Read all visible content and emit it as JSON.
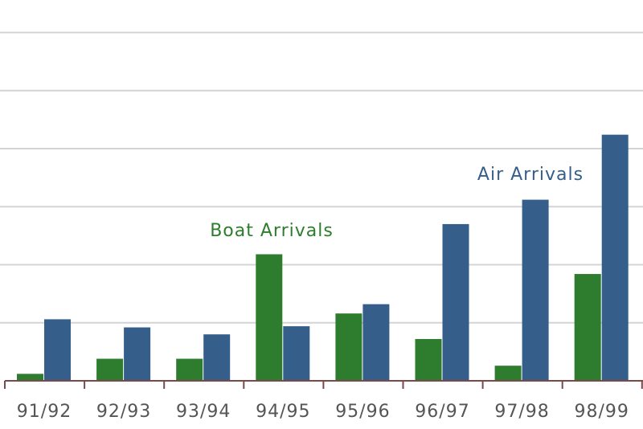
{
  "chart_data": {
    "type": "bar",
    "categories": [
      "91/92",
      "92/93",
      "93/94",
      "94/95",
      "95/96",
      "96/97",
      "97/98",
      "98/99"
    ],
    "series": [
      {
        "name": "Boat Arrivals",
        "color": "#2e7d2e",
        "values": [
          0.6,
          1.9,
          1.9,
          10.9,
          5.8,
          3.6,
          1.3,
          9.2
        ]
      },
      {
        "name": "Air Arrivals",
        "color": "#355f8a",
        "values": [
          5.3,
          4.6,
          4.0,
          4.7,
          6.6,
          13.5,
          15.6,
          21.2
        ]
      }
    ],
    "ylim": [
      0,
      30
    ],
    "gridline_values": [
      5,
      10,
      15,
      20,
      25,
      30
    ],
    "grid": true,
    "annotations": [
      {
        "text": "Boat Arrivals",
        "series": "Boat Arrivals",
        "color": "#2e7d2e"
      },
      {
        "text": "Air Arrivals",
        "series": "Air Arrivals",
        "color": "#355f8a"
      }
    ],
    "title": "",
    "xlabel": "",
    "ylabel": ""
  }
}
